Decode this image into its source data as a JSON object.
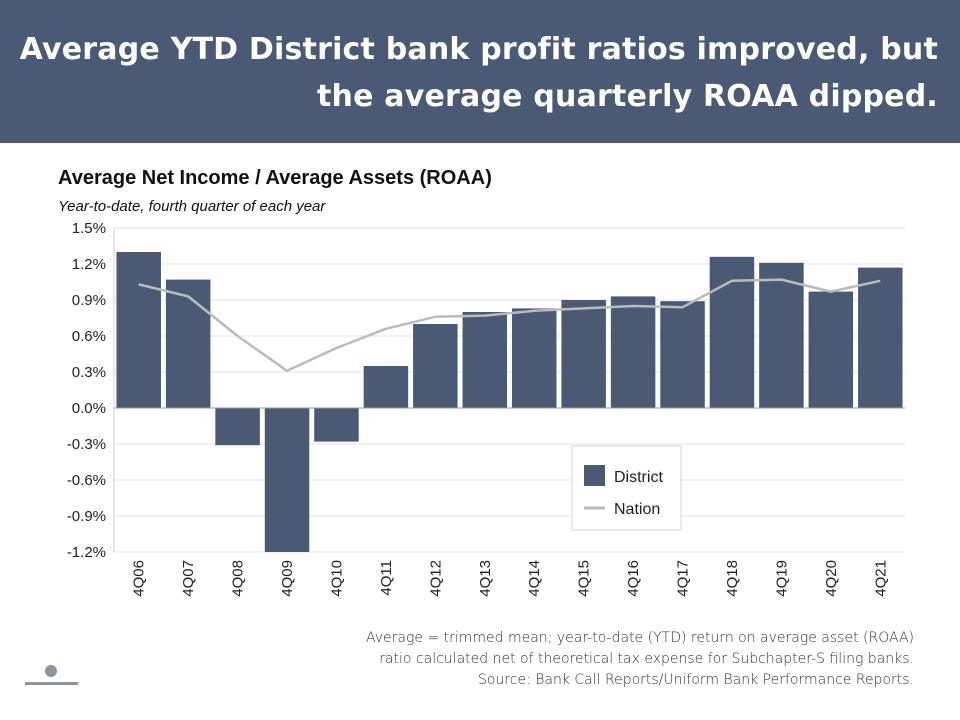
{
  "banner": {
    "title": "Average YTD District bank profit ratios improved, but the average quarterly ROAA dipped."
  },
  "chart_data": {
    "type": "bar",
    "title": "Average Net Income / Average Assets (ROAA)",
    "subtitle": "Year-to-date, fourth quarter of each year",
    "categories": [
      "4Q06",
      "4Q07",
      "4Q08",
      "4Q09",
      "4Q10",
      "4Q11",
      "4Q12",
      "4Q13",
      "4Q14",
      "4Q15",
      "4Q16",
      "4Q17",
      "4Q18",
      "4Q19",
      "4Q20",
      "4Q21"
    ],
    "series": [
      {
        "name": "District",
        "kind": "bar",
        "color": "#4a5a75",
        "values": [
          1.3,
          1.07,
          -0.31,
          -1.2,
          -0.28,
          0.35,
          0.7,
          0.8,
          0.83,
          0.9,
          0.93,
          0.89,
          1.26,
          1.21,
          0.97,
          1.17
        ]
      },
      {
        "name": "Nation",
        "kind": "line",
        "color": "#bbbbbb",
        "values": [
          1.03,
          0.93,
          0.6,
          0.31,
          0.5,
          0.66,
          0.76,
          0.77,
          0.81,
          0.83,
          0.85,
          0.84,
          1.06,
          1.07,
          0.97,
          1.06
        ]
      }
    ],
    "yticks": [
      "1.5%",
      "1.2%",
      "0.9%",
      "0.6%",
      "0.3%",
      "0.0%",
      "-0.3%",
      "-0.6%",
      "-0.9%",
      "-1.2%"
    ],
    "ylim": [
      -1.2,
      1.5
    ],
    "grid": true,
    "legend_position": "bottom-right"
  },
  "footnote": {
    "line1": "Average = trimmed mean; year-to-date (YTD) return on average asset (ROAA)",
    "line2": "ratio calculated net of theoretical tax expense for Subchapter-S filing banks.",
    "line3": "Source: Bank Call Reports/Uniform Bank Performance Reports."
  },
  "colors": {
    "banner_bg": "#4a5a75",
    "district": "#4a5a75",
    "nation": "#bbbbbb"
  }
}
